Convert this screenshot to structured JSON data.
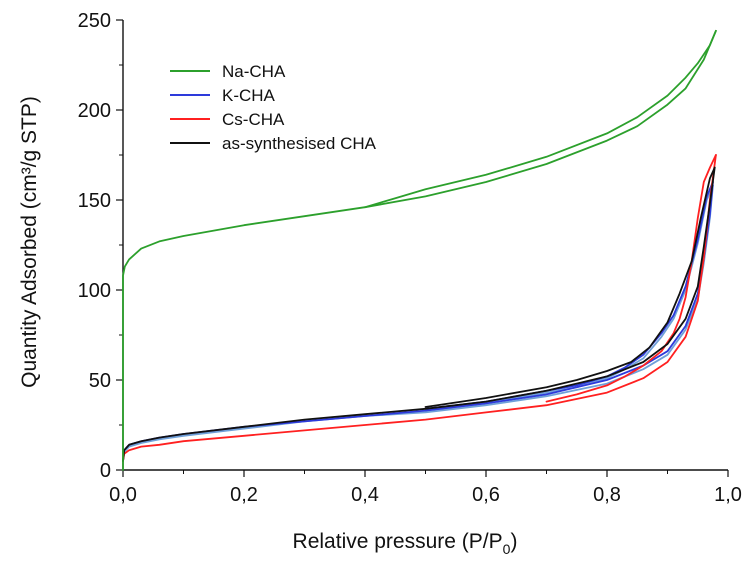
{
  "chart_data": {
    "type": "line",
    "title": "",
    "xlabel": "Relative pressure (P/P",
    "xlabel_subscript": "0",
    "xlabel_suffix": ")",
    "ylabel": "Quantity Adsorbed (cm³/g STP)",
    "xlim": [
      0,
      1.0
    ],
    "ylim": [
      0,
      250
    ],
    "x_ticks": [
      0,
      0.2,
      0.4,
      0.6,
      0.8,
      1.0
    ],
    "x_tick_labels": [
      "0,0",
      "0,2",
      "0,4",
      "0,6",
      "0,8",
      "1,0"
    ],
    "y_ticks": [
      0,
      50,
      100,
      150,
      200,
      250
    ],
    "y_tick_labels": [
      "0",
      "50",
      "100",
      "150",
      "200",
      "250"
    ],
    "grid": false,
    "legend_position": "top-left",
    "series": [
      {
        "name": "Na-CHA",
        "color": "#2ca02c",
        "adsorption": [
          [
            0,
            0
          ],
          [
            0,
            108
          ],
          [
            0.003,
            113
          ],
          [
            0.01,
            117
          ],
          [
            0.03,
            123
          ],
          [
            0.06,
            127
          ],
          [
            0.1,
            130
          ],
          [
            0.2,
            136
          ],
          [
            0.3,
            141
          ],
          [
            0.4,
            146
          ],
          [
            0.5,
            152
          ],
          [
            0.6,
            160
          ],
          [
            0.7,
            170
          ],
          [
            0.8,
            183
          ],
          [
            0.85,
            191
          ],
          [
            0.9,
            203
          ],
          [
            0.93,
            212
          ],
          [
            0.96,
            228
          ],
          [
            0.98,
            244
          ]
        ],
        "desorption": [
          [
            0.98,
            244
          ],
          [
            0.97,
            236
          ],
          [
            0.95,
            226
          ],
          [
            0.93,
            218
          ],
          [
            0.9,
            208
          ],
          [
            0.85,
            196
          ],
          [
            0.8,
            187
          ],
          [
            0.7,
            174
          ],
          [
            0.6,
            164
          ],
          [
            0.5,
            156
          ],
          [
            0.45,
            151
          ],
          [
            0.4,
            146
          ]
        ]
      },
      {
        "name": "K-CHA",
        "color": "#2d3adb",
        "adsorption": [
          [
            0,
            5
          ],
          [
            0.002,
            11
          ],
          [
            0.01,
            14
          ],
          [
            0.03,
            16
          ],
          [
            0.06,
            18
          ],
          [
            0.1,
            20
          ],
          [
            0.2,
            24
          ],
          [
            0.3,
            27
          ],
          [
            0.4,
            30
          ],
          [
            0.5,
            33
          ],
          [
            0.6,
            37
          ],
          [
            0.7,
            42
          ],
          [
            0.8,
            50
          ],
          [
            0.86,
            58
          ],
          [
            0.9,
            66
          ],
          [
            0.93,
            80
          ],
          [
            0.95,
            98
          ],
          [
            0.96,
            118
          ],
          [
            0.97,
            142
          ],
          [
            0.975,
            160
          ]
        ],
        "desorption": [
          [
            0.975,
            160
          ],
          [
            0.965,
            152
          ],
          [
            0.95,
            128
          ],
          [
            0.93,
            102
          ],
          [
            0.91,
            86
          ],
          [
            0.89,
            76
          ],
          [
            0.86,
            64
          ],
          [
            0.83,
            57
          ],
          [
            0.8,
            52
          ],
          [
            0.75,
            47
          ],
          [
            0.7,
            44
          ],
          [
            0.6,
            38
          ],
          [
            0.5,
            34
          ]
        ]
      },
      {
        "name": "Cs-CHA",
        "color": "#ff2020",
        "adsorption": [
          [
            0,
            5
          ],
          [
            0.002,
            9
          ],
          [
            0.01,
            11
          ],
          [
            0.03,
            13
          ],
          [
            0.06,
            14
          ],
          [
            0.1,
            16
          ],
          [
            0.2,
            19
          ],
          [
            0.3,
            22
          ],
          [
            0.4,
            25
          ],
          [
            0.5,
            28
          ],
          [
            0.6,
            32
          ],
          [
            0.7,
            36
          ],
          [
            0.8,
            43
          ],
          [
            0.86,
            51
          ],
          [
            0.9,
            60
          ],
          [
            0.93,
            74
          ],
          [
            0.95,
            94
          ],
          [
            0.96,
            118
          ],
          [
            0.97,
            150
          ],
          [
            0.98,
            175
          ]
        ],
        "desorption": [
          [
            0.98,
            175
          ],
          [
            0.97,
            168
          ],
          [
            0.96,
            160
          ],
          [
            0.95,
            140
          ],
          [
            0.94,
            116
          ],
          [
            0.93,
            96
          ],
          [
            0.92,
            84
          ],
          [
            0.91,
            76
          ],
          [
            0.89,
            66
          ],
          [
            0.86,
            58
          ],
          [
            0.83,
            52
          ],
          [
            0.8,
            47
          ],
          [
            0.75,
            42
          ],
          [
            0.7,
            38
          ]
        ]
      },
      {
        "name": "as-synthesised CHA",
        "color": "#111111",
        "adsorption": [
          [
            0,
            5
          ],
          [
            0.002,
            11
          ],
          [
            0.01,
            14
          ],
          [
            0.03,
            16
          ],
          [
            0.06,
            18
          ],
          [
            0.1,
            20
          ],
          [
            0.2,
            24
          ],
          [
            0.3,
            28
          ],
          [
            0.4,
            31
          ],
          [
            0.5,
            34
          ],
          [
            0.6,
            38
          ],
          [
            0.7,
            44
          ],
          [
            0.8,
            52
          ],
          [
            0.86,
            60
          ],
          [
            0.9,
            70
          ],
          [
            0.93,
            84
          ],
          [
            0.95,
            102
          ],
          [
            0.96,
            124
          ],
          [
            0.97,
            148
          ],
          [
            0.978,
            168
          ]
        ],
        "desorption": [
          [
            0.978,
            168
          ],
          [
            0.97,
            162
          ],
          [
            0.955,
            140
          ],
          [
            0.94,
            116
          ],
          [
            0.92,
            98
          ],
          [
            0.9,
            82
          ],
          [
            0.87,
            68
          ],
          [
            0.84,
            60
          ],
          [
            0.8,
            55
          ],
          [
            0.75,
            50
          ],
          [
            0.7,
            46
          ],
          [
            0.6,
            40
          ],
          [
            0.5,
            35
          ]
        ]
      },
      {
        "name": "",
        "color": "#6fa0d8",
        "adsorption": [
          [
            0,
            5
          ],
          [
            0.002,
            10
          ],
          [
            0.01,
            13
          ],
          [
            0.03,
            15
          ],
          [
            0.06,
            17
          ],
          [
            0.1,
            19
          ],
          [
            0.2,
            23
          ],
          [
            0.3,
            27
          ],
          [
            0.4,
            30
          ],
          [
            0.5,
            32
          ],
          [
            0.6,
            36
          ],
          [
            0.7,
            41
          ],
          [
            0.8,
            48
          ],
          [
            0.86,
            56
          ],
          [
            0.9,
            64
          ],
          [
            0.93,
            78
          ],
          [
            0.95,
            95
          ],
          [
            0.96,
            115
          ],
          [
            0.97,
            140
          ],
          [
            0.975,
            158
          ]
        ],
        "desorption": [
          [
            0.975,
            158
          ],
          [
            0.965,
            150
          ],
          [
            0.95,
            126
          ],
          [
            0.93,
            100
          ],
          [
            0.91,
            84
          ],
          [
            0.89,
            74
          ],
          [
            0.86,
            62
          ],
          [
            0.83,
            56
          ],
          [
            0.8,
            51
          ],
          [
            0.75,
            46
          ],
          [
            0.7,
            43
          ],
          [
            0.6,
            37
          ],
          [
            0.5,
            33
          ]
        ]
      }
    ],
    "legend": [
      {
        "label": "Na-CHA",
        "color": "#2ca02c"
      },
      {
        "label": "K-CHA",
        "color": "#2d3adb"
      },
      {
        "label": "Cs-CHA",
        "color": "#ff2020"
      },
      {
        "label": "as-synthesised CHA",
        "color": "#111111"
      }
    ]
  }
}
